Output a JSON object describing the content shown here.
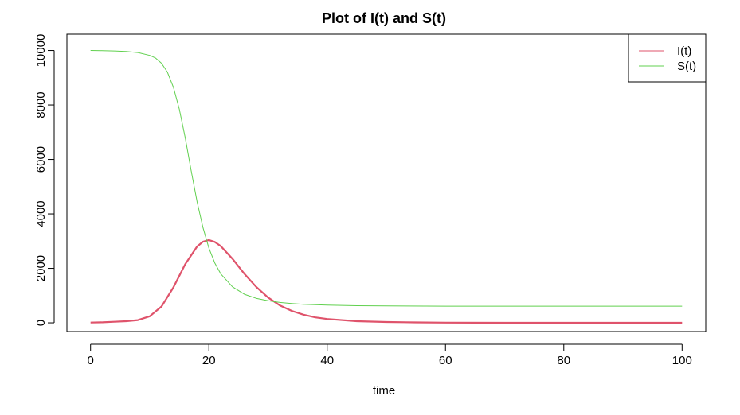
{
  "chart_data": {
    "type": "line",
    "title": "Plot of I(t) and S(t)",
    "xlabel": "time",
    "ylabel": "",
    "xlim": [
      -4,
      104
    ],
    "ylim": [
      -320,
      10600
    ],
    "x_ticks": [
      0,
      20,
      40,
      60,
      80,
      100
    ],
    "y_ticks": [
      0,
      2000,
      4000,
      6000,
      8000,
      10000
    ],
    "grid": false,
    "legend_position": "top-right",
    "series": [
      {
        "name": "I(t)",
        "color": "#DF536B",
        "line_width": "thick",
        "x": [
          0,
          2,
          4,
          6,
          8,
          10,
          12,
          14,
          16,
          18,
          19,
          20,
          21,
          22,
          24,
          26,
          28,
          30,
          32,
          34,
          36,
          38,
          40,
          45,
          50,
          55,
          60,
          70,
          80,
          90,
          100
        ],
        "y": [
          10,
          20,
          40,
          60,
          100,
          240,
          600,
          1300,
          2150,
          2800,
          2980,
          3040,
          2970,
          2820,
          2350,
          1800,
          1320,
          930,
          640,
          440,
          300,
          200,
          140,
          60,
          30,
          15,
          6,
          2,
          1,
          0,
          0
        ]
      },
      {
        "name": "S(t)",
        "color": "#61D04F",
        "line_width": "thin",
        "x": [
          0,
          2,
          4,
          6,
          8,
          10,
          11,
          12,
          13,
          14,
          15,
          16,
          17,
          18,
          19,
          20,
          21,
          22,
          24,
          26,
          28,
          30,
          32,
          34,
          36,
          40,
          45,
          50,
          60,
          70,
          80,
          90,
          100
        ],
        "y": [
          10000,
          9995,
          9985,
          9965,
          9925,
          9820,
          9720,
          9530,
          9200,
          8650,
          7850,
          6800,
          5600,
          4450,
          3500,
          2750,
          2200,
          1800,
          1320,
          1050,
          900,
          810,
          750,
          710,
          680,
          650,
          630,
          620,
          612,
          610,
          610,
          610,
          610
        ]
      }
    ]
  }
}
